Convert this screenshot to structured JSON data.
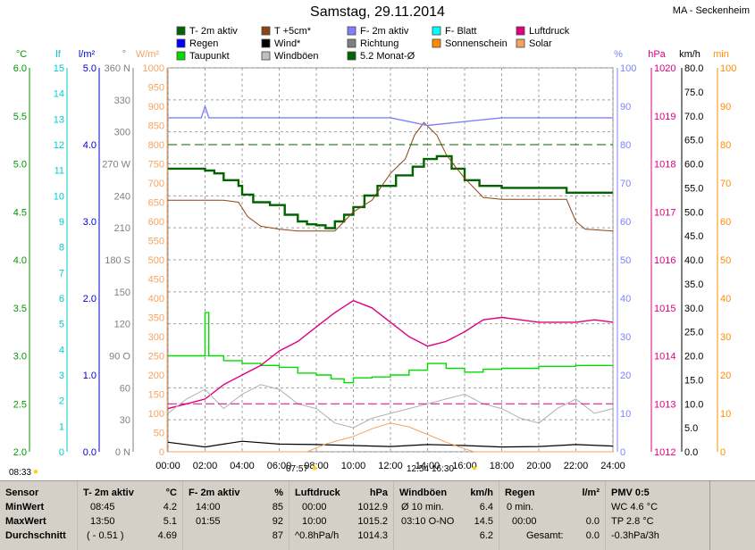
{
  "title": "Samstag, 29.11.2014",
  "station": "MA - Seckenheim",
  "legend": [
    {
      "label": "T- 2m aktiv",
      "color": "#006400"
    },
    {
      "label": "Regen",
      "color": "#0000ff"
    },
    {
      "label": "Taupunkt",
      "color": "#00dd00"
    },
    {
      "label": "T +5cm*",
      "color": "#8b4513"
    },
    {
      "label": "Wind*",
      "color": "#000000"
    },
    {
      "label": "Windböen",
      "color": "#c0c0c0"
    },
    {
      "label": "F- 2m aktiv",
      "color": "#8080ff"
    },
    {
      "label": "Richtung",
      "color": "#808080"
    },
    {
      "label": "5.2 Monat-Ø",
      "color": "#006400"
    },
    {
      "label": "F- Blatt",
      "color": "#00ffff"
    },
    {
      "label": "Sonnenschein",
      "color": "#ff8c00"
    },
    {
      "label": "Luftdruck",
      "color": "#e0007f"
    },
    {
      "label": "Solar",
      "color": "#f4a460"
    }
  ],
  "axes": {
    "temp": {
      "unit": "°C",
      "ticks": [
        "6.0",
        "5.5",
        "5.0",
        "4.5",
        "4.0",
        "3.5",
        "3.0",
        "2.5",
        "2.0"
      ],
      "color": "#009900"
    },
    "leaf": {
      "unit": "lf",
      "ticks": [
        "15",
        "14",
        "13",
        "12",
        "11",
        "10",
        "9",
        "8",
        "7",
        "6",
        "5",
        "4",
        "3",
        "2",
        "1",
        "0"
      ],
      "color": "#00cccc"
    },
    "rain": {
      "unit": "l/m²",
      "ticks": [
        "5.0",
        "4.0",
        "3.0",
        "2.0",
        "1.0",
        "0.0"
      ],
      "color": "#0000cc"
    },
    "dir": {
      "unit": "°",
      "ticks": [
        "360 N",
        "330",
        "300",
        "270 W",
        "240",
        "210",
        "180 S",
        "150",
        "120",
        "90 O",
        "60",
        "30",
        "0 N"
      ],
      "color": "#808080"
    },
    "solar": {
      "unit": "W/m²",
      "ticks": [
        "1000",
        "950",
        "900",
        "850",
        "800",
        "750",
        "700",
        "650",
        "600",
        "550",
        "500",
        "450",
        "400",
        "350",
        "300",
        "250",
        "200",
        "150",
        "100",
        "50",
        "0"
      ],
      "color": "#f4a460"
    },
    "hum": {
      "unit": "%",
      "ticks": [
        "100",
        "90",
        "80",
        "70",
        "60",
        "50",
        "40",
        "30",
        "20",
        "10",
        "0"
      ],
      "color": "#8080ff"
    },
    "press": {
      "unit": "hPa",
      "ticks": [
        "1020",
        "1019",
        "1018",
        "1017",
        "1016",
        "1015",
        "1014",
        "1013",
        "1012"
      ],
      "color": "#e0007f"
    },
    "wind": {
      "unit": "km/h",
      "ticks": [
        "80.0",
        "75.0",
        "70.0",
        "65.0",
        "60.0",
        "55.0",
        "50.0",
        "45.0",
        "40.0",
        "35.0",
        "30.0",
        "25.0",
        "20.0",
        "15.0",
        "10.0",
        "5.0",
        "0.0"
      ],
      "color": "#000000"
    },
    "min": {
      "unit": "min",
      "ticks": [
        "100",
        "90",
        "80",
        "70",
        "60",
        "50",
        "40",
        "30",
        "20",
        "10",
        "0"
      ],
      "color": "#ff8c00"
    }
  },
  "x_ticks": [
    "00:00",
    "02:00",
    "04:00",
    "06:00",
    "08:00",
    "10:00",
    "12:00",
    "14:00",
    "16:00",
    "18:00",
    "20:00",
    "22:00",
    "24:00"
  ],
  "sun": {
    "rise": "08:33",
    "sunrise_time": "07:57",
    "noon": "12:54",
    "set": "16:30"
  },
  "chart_data": {
    "type": "line",
    "x_unit": "hour",
    "series": [
      {
        "name": "T- 2m aktiv",
        "unit": "°C",
        "points": [
          [
            0,
            4.95
          ],
          [
            1.2,
            4.95
          ],
          [
            2,
            4.93
          ],
          [
            2.5,
            4.9
          ],
          [
            3,
            4.83
          ],
          [
            3.8,
            4.77
          ],
          [
            4,
            4.68
          ],
          [
            4.6,
            4.6
          ],
          [
            5.5,
            4.57
          ],
          [
            6.3,
            4.47
          ],
          [
            7,
            4.4
          ],
          [
            7.5,
            4.37
          ],
          [
            8,
            4.36
          ],
          [
            8.5,
            4.33
          ],
          [
            9,
            4.4
          ],
          [
            9.5,
            4.47
          ],
          [
            10,
            4.55
          ],
          [
            10.6,
            4.67
          ],
          [
            11.3,
            4.77
          ],
          [
            12.3,
            4.88
          ],
          [
            13.2,
            4.97
          ],
          [
            13.8,
            5.05
          ],
          [
            14.5,
            5.08
          ],
          [
            15.3,
            4.95
          ],
          [
            16,
            4.83
          ],
          [
            16.8,
            4.77
          ],
          [
            18,
            4.75
          ],
          [
            19,
            4.75
          ],
          [
            20.5,
            4.75
          ],
          [
            21.5,
            4.7
          ],
          [
            23,
            4.7
          ],
          [
            24,
            4.7
          ]
        ]
      },
      {
        "name": "Taupunkt",
        "unit": "°C",
        "points": [
          [
            0,
            3.0
          ],
          [
            1.5,
            3.0
          ],
          [
            2,
            3.45
          ],
          [
            2.2,
            3.0
          ],
          [
            3,
            2.95
          ],
          [
            4,
            2.92
          ],
          [
            5,
            2.9
          ],
          [
            6,
            2.88
          ],
          [
            7,
            2.82
          ],
          [
            8,
            2.8
          ],
          [
            8.8,
            2.76
          ],
          [
            9.5,
            2.72
          ],
          [
            10,
            2.77
          ],
          [
            11,
            2.78
          ],
          [
            12,
            2.8
          ],
          [
            13,
            2.85
          ],
          [
            14,
            2.92
          ],
          [
            15,
            2.87
          ],
          [
            16,
            2.83
          ],
          [
            17,
            2.86
          ],
          [
            18,
            2.87
          ],
          [
            20,
            2.89
          ],
          [
            22,
            2.9
          ],
          [
            24,
            2.9
          ]
        ]
      },
      {
        "name": "T +5cm*",
        "unit": "°C",
        "points": [
          [
            0,
            4.62
          ],
          [
            3,
            4.62
          ],
          [
            3.8,
            4.6
          ],
          [
            4.3,
            4.45
          ],
          [
            5,
            4.35
          ],
          [
            6,
            4.32
          ],
          [
            7,
            4.3
          ],
          [
            8,
            4.3
          ],
          [
            9,
            4.3
          ],
          [
            10,
            4.5
          ],
          [
            11,
            4.62
          ],
          [
            12,
            4.9
          ],
          [
            12.8,
            5.05
          ],
          [
            13.3,
            5.3
          ],
          [
            13.8,
            5.43
          ],
          [
            14.5,
            5.3
          ],
          [
            15,
            5.1
          ],
          [
            15.5,
            4.97
          ],
          [
            16,
            4.85
          ],
          [
            17,
            4.65
          ],
          [
            18,
            4.63
          ],
          [
            20,
            4.63
          ],
          [
            21.5,
            4.63
          ],
          [
            22,
            4.4
          ],
          [
            22.5,
            4.32
          ],
          [
            24,
            4.3
          ]
        ]
      },
      {
        "name": "F- 2m aktiv",
        "unit": "%",
        "points": [
          [
            0,
            87
          ],
          [
            1.8,
            87
          ],
          [
            2,
            90
          ],
          [
            2.2,
            87
          ],
          [
            4,
            87
          ],
          [
            6,
            87
          ],
          [
            8,
            87
          ],
          [
            10,
            87
          ],
          [
            12,
            87
          ],
          [
            13,
            86
          ],
          [
            14,
            85
          ],
          [
            16,
            86
          ],
          [
            18,
            87
          ],
          [
            20,
            87
          ],
          [
            22,
            87
          ],
          [
            24,
            87
          ]
        ]
      },
      {
        "name": "Luftdruck",
        "unit": "hPa",
        "points": [
          [
            0,
            1012.9
          ],
          [
            1,
            1013.0
          ],
          [
            2,
            1013.1
          ],
          [
            3,
            1013.4
          ],
          [
            4,
            1013.6
          ],
          [
            5,
            1013.8
          ],
          [
            6,
            1014.1
          ],
          [
            7,
            1014.3
          ],
          [
            8,
            1014.6
          ],
          [
            9,
            1014.9
          ],
          [
            10,
            1015.15
          ],
          [
            11,
            1015.0
          ],
          [
            12,
            1014.7
          ],
          [
            13,
            1014.4
          ],
          [
            14,
            1014.2
          ],
          [
            15,
            1014.3
          ],
          [
            16,
            1014.5
          ],
          [
            17,
            1014.75
          ],
          [
            18,
            1014.8
          ],
          [
            19,
            1014.75
          ],
          [
            20,
            1014.7
          ],
          [
            21,
            1014.7
          ],
          [
            22,
            1014.7
          ],
          [
            23,
            1014.75
          ],
          [
            24,
            1014.7
          ]
        ]
      },
      {
        "name": "Windböen",
        "unit": "km/h",
        "points": [
          [
            0,
            8
          ],
          [
            1,
            11
          ],
          [
            2,
            13
          ],
          [
            3,
            9
          ],
          [
            4,
            12
          ],
          [
            5,
            14
          ],
          [
            6,
            13
          ],
          [
            7,
            10
          ],
          [
            8,
            9
          ],
          [
            9,
            6
          ],
          [
            10,
            5
          ],
          [
            11,
            7
          ],
          [
            12,
            8
          ],
          [
            13,
            9
          ],
          [
            14,
            10
          ],
          [
            15,
            11
          ],
          [
            16,
            12
          ],
          [
            17,
            10
          ],
          [
            18,
            9
          ],
          [
            19,
            7
          ],
          [
            20,
            6
          ],
          [
            21,
            9
          ],
          [
            22,
            11
          ],
          [
            23,
            8
          ],
          [
            24,
            9
          ]
        ]
      },
      {
        "name": "Wind*",
        "unit": "km/h",
        "points": [
          [
            0,
            2
          ],
          [
            2,
            1
          ],
          [
            4,
            2.2
          ],
          [
            6,
            1.6
          ],
          [
            8,
            1.5
          ],
          [
            10,
            1.3
          ],
          [
            12,
            1.1
          ],
          [
            14,
            1.5
          ],
          [
            16,
            1.3
          ],
          [
            18,
            1.0
          ],
          [
            20,
            1.1
          ],
          [
            22,
            1.5
          ],
          [
            24,
            1.2
          ]
        ]
      },
      {
        "name": "Solar",
        "unit": "W/m²",
        "points": [
          [
            0,
            0
          ],
          [
            7.5,
            0
          ],
          [
            8.5,
            20
          ],
          [
            10,
            40
          ],
          [
            11,
            60
          ],
          [
            12,
            75
          ],
          [
            13,
            65
          ],
          [
            14,
            45
          ],
          [
            15,
            25
          ],
          [
            16,
            8
          ],
          [
            16.5,
            0
          ],
          [
            24,
            0
          ]
        ]
      },
      {
        "name": "5.2 Monat-Ø",
        "unit": "%",
        "points": [
          [
            0,
            80
          ],
          [
            24,
            80
          ]
        ]
      }
    ]
  },
  "stats": {
    "sensor": {
      "header": "Sensor",
      "rows": [
        "MinWert",
        "MaxWert",
        "Durchschnitt"
      ]
    },
    "temp": {
      "header": "T- 2m aktiv",
      "unit": "°C",
      "rows": [
        [
          "08:45",
          "4.2"
        ],
        [
          "13:50",
          "5.1"
        ],
        [
          "( - 0.51 )",
          "4.69"
        ]
      ]
    },
    "hum": {
      "header": "F- 2m aktiv",
      "unit": "%",
      "rows": [
        [
          "14:00",
          "85"
        ],
        [
          "01:55",
          "92"
        ],
        [
          "",
          "87"
        ]
      ]
    },
    "press": {
      "header": "Luftdruck",
      "unit": "hPa",
      "rows": [
        [
          "00:00",
          "1012.9"
        ],
        [
          "10:00",
          "1015.2"
        ],
        [
          "^0.8hPa/h",
          "1014.3"
        ]
      ]
    },
    "wind": {
      "header": "Windböen",
      "unit": "km/h",
      "rows": [
        [
          "Ø 10 min.",
          "6.4"
        ],
        [
          "03:10   O-NO",
          "14.5"
        ],
        [
          "",
          "6.2"
        ]
      ]
    },
    "rain": {
      "header": "Regen",
      "unit": "l/m²",
      "rows": [
        [
          "0 min.",
          ""
        ],
        [
          "00:00",
          "0.0"
        ],
        [
          "Gesamt:",
          "0.0"
        ]
      ]
    },
    "pmv": {
      "header": "PMV 0:5",
      "rows": [
        "WC 4.6 °C",
        "TP 2.8 °C",
        "-0.3hPa/3h"
      ]
    }
  }
}
